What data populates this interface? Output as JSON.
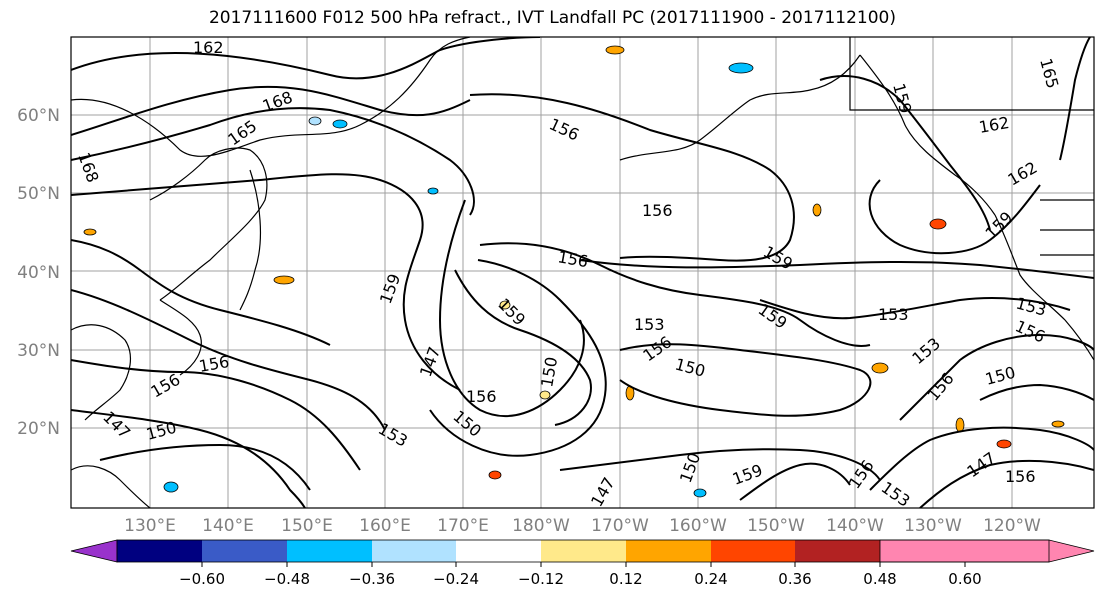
{
  "title": "2017111600 F012 500 hPa refract., IVT Landfall PC (2017111900 - 2017112100)",
  "lat_labels": [
    "60°N",
    "50°N",
    "40°N",
    "30°N",
    "20°N"
  ],
  "lon_labels": [
    "130°E",
    "140°E",
    "150°E",
    "160°E",
    "170°E",
    "180°W",
    "170°W",
    "160°W",
    "150°W",
    "140°W",
    "130°W",
    "120°W"
  ],
  "contour_labels": [
    "162",
    "168",
    "165",
    "168",
    "156",
    "156",
    "156",
    "159",
    "159",
    "159",
    "153",
    "156",
    "150",
    "159",
    "156",
    "150",
    "147",
    "153",
    "156",
    "150",
    "147",
    "150",
    "156",
    "162",
    "165",
    "159",
    "162",
    "159",
    "153",
    "156",
    "153",
    "156",
    "150",
    "153",
    "147",
    "156",
    "150",
    "159",
    "156",
    "153",
    "147"
  ],
  "colorbar": {
    "ticks": [
      "−0.60",
      "−0.48",
      "−0.36",
      "−0.24",
      "−0.12",
      "0.12",
      "0.24",
      "0.36",
      "0.48",
      "0.60"
    ],
    "colors": [
      "#9932cc",
      "#000080",
      "#3a5bc7",
      "#00bfff",
      "#b0e2ff",
      "#ffffff",
      "#ffe98a",
      "#ffa500",
      "#ff4500",
      "#b22222",
      "#ff85b0"
    ]
  }
}
